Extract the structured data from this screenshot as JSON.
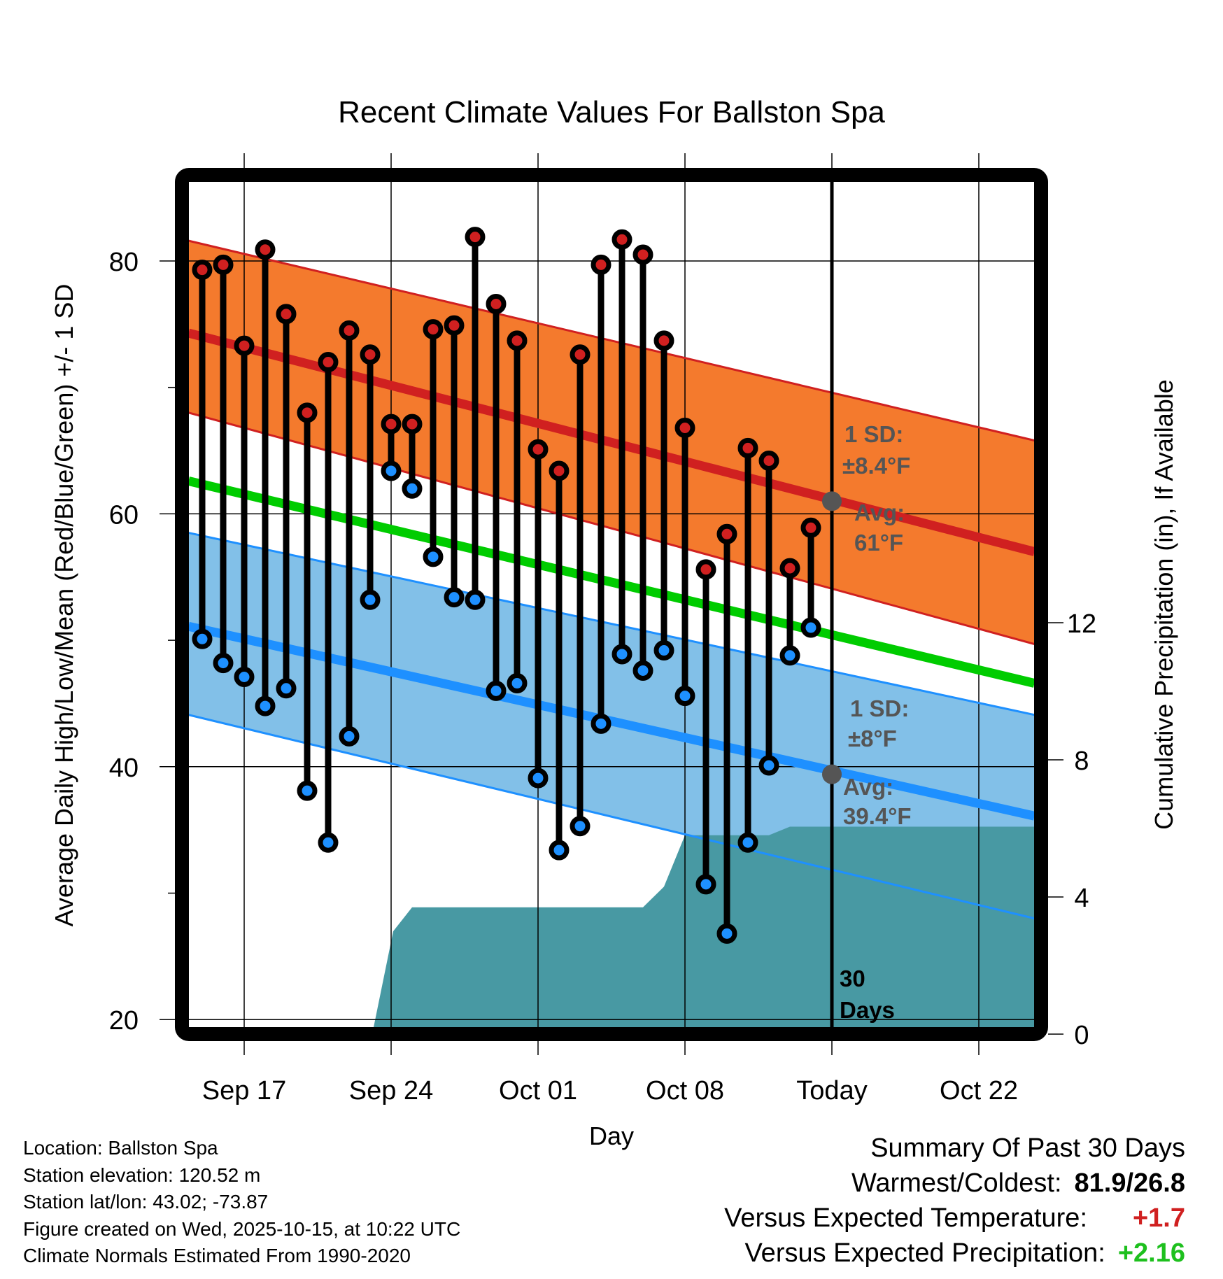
{
  "chart_data": {
    "type": "line",
    "title": "Recent Climate Values For Ballston Spa",
    "xlabel": "Day",
    "ylabel": "Average Daily High/Low/Mean (Red/Blue/Green) +/- 1 SD",
    "y2label": "Cumulative Precipitation (in), If Available",
    "ylim": [
      19.3,
      87
    ],
    "y2lim": [
      0,
      24
    ],
    "yticks": [
      20,
      40,
      60,
      80
    ],
    "yticks_minor": [
      30,
      50,
      70
    ],
    "y2ticks": [
      0,
      4,
      8,
      12
    ],
    "xticks": [
      {
        "label": "Sep 17",
        "day": 0
      },
      {
        "label": "Sep 24",
        "day": 7
      },
      {
        "label": "Oct 01",
        "day": 14
      },
      {
        "label": "Oct 08",
        "day": 21
      },
      {
        "label": "Today",
        "day": 28
      },
      {
        "label": "Oct 22",
        "day": 35
      }
    ],
    "xlim_days": [
      -2.65,
      37.65
    ],
    "today_day": 28,
    "grid": true,
    "dates": [
      "Sep 15",
      "Sep 16",
      "Sep 17",
      "Sep 18",
      "Sep 19",
      "Sep 20",
      "Sep 21",
      "Sep 22",
      "Sep 23",
      "Sep 24",
      "Sep 25",
      "Sep 26",
      "Sep 27",
      "Sep 28",
      "Sep 29",
      "Sep 30",
      "Oct 01",
      "Oct 02",
      "Oct 03",
      "Oct 04",
      "Oct 05",
      "Oct 06",
      "Oct 07",
      "Oct 08",
      "Oct 09",
      "Oct 10",
      "Oct 11",
      "Oct 12",
      "Oct 13",
      "Oct 14"
    ],
    "days": [
      -2,
      -1,
      0,
      1,
      2,
      3,
      4,
      5,
      6,
      7,
      8,
      9,
      10,
      11,
      12,
      13,
      14,
      15,
      16,
      17,
      18,
      19,
      20,
      21,
      22,
      23,
      24,
      25,
      26,
      27
    ],
    "series": [
      {
        "name": "Daily High",
        "color": "#d02020",
        "values": [
          79.3,
          79.7,
          73.3,
          80.9,
          75.8,
          68.0,
          72.0,
          74.5,
          72.6,
          67.1,
          67.1,
          74.6,
          74.9,
          81.9,
          76.6,
          73.7,
          65.1,
          63.4,
          72.6,
          79.7,
          81.7,
          80.5,
          73.7,
          66.8,
          55.6,
          58.4,
          65.2,
          64.2,
          55.7,
          58.9
        ]
      },
      {
        "name": "Daily Low",
        "color": "#1e90ff",
        "values": [
          50.1,
          48.2,
          47.1,
          44.8,
          46.2,
          38.1,
          34.0,
          42.4,
          53.2,
          63.4,
          62.0,
          56.6,
          53.4,
          53.2,
          46.0,
          46.6,
          39.1,
          33.4,
          35.3,
          43.4,
          48.9,
          47.6,
          49.2,
          45.6,
          30.7,
          26.8,
          34.0,
          40.1,
          48.8,
          51.0
        ]
      }
    ],
    "normals": {
      "day_range": [
        -2.65,
        37.65
      ],
      "avg_high": [
        74.3,
        57.0
      ],
      "avg_high_sd_upper": [
        81.6,
        65.8
      ],
      "avg_high_sd_lower": [
        68.0,
        49.7
      ],
      "avg_mean": [
        62.6,
        46.6
      ],
      "avg_low": [
        51.1,
        36.1
      ],
      "avg_low_sd_upper": [
        58.5,
        44.1
      ],
      "avg_low_sd_lower": [
        44.1,
        28.0
      ]
    },
    "precipitation": {
      "name": "Cumulative Precipitation (in)",
      "color": "#4899a3",
      "days": [
        6.1,
        7.1,
        8.0,
        19.0,
        20.0,
        21.0,
        25.0,
        26.0,
        37.65
      ],
      "values": [
        0,
        3.0,
        3.7,
        3.7,
        4.3,
        5.8,
        5.8,
        6.05,
        6.05
      ]
    },
    "annotations": {
      "high_sd": "1 SD:",
      "high_sd_value": "±8.4°F",
      "high_avg": "Avg:",
      "high_avg_value": "61°F",
      "high_today": 61,
      "low_sd": "1 SD:",
      "low_sd_value": "±8°F",
      "low_avg": "Avg:",
      "low_avg_value": "39.4°F",
      "low_today": 39.4,
      "days_line1": "30",
      "days_line2": "Days"
    },
    "colors": {
      "high_band": "#f47a2d",
      "high_line": "#d02020",
      "low_band": "#82c0e8",
      "low_line": "#1e90ff",
      "mean_line": "#00cc00",
      "today_marker": "#555555"
    }
  },
  "footer": {
    "location": "Location: Ballston Spa",
    "elevation": "Station elevation: 120.52 m",
    "latlon": "Station lat/lon: 43.02; -73.87",
    "created": "Figure created on Wed, 2025-10-15, at 10:22 UTC",
    "normals": "Climate Normals Estimated From 1990-2020"
  },
  "summary": {
    "heading": "Summary Of Past 30 Days",
    "warmest_coldest_label": "Warmest/Coldest:",
    "warmest_coldest_value": "81.9/26.8",
    "temp_label": "Versus Expected Temperature:",
    "temp_value": "+1.7",
    "temp_color": "#d02020",
    "precip_label": "Versus Expected Precipitation:",
    "precip_value": "+2.16",
    "precip_color": "#1ec01e"
  }
}
